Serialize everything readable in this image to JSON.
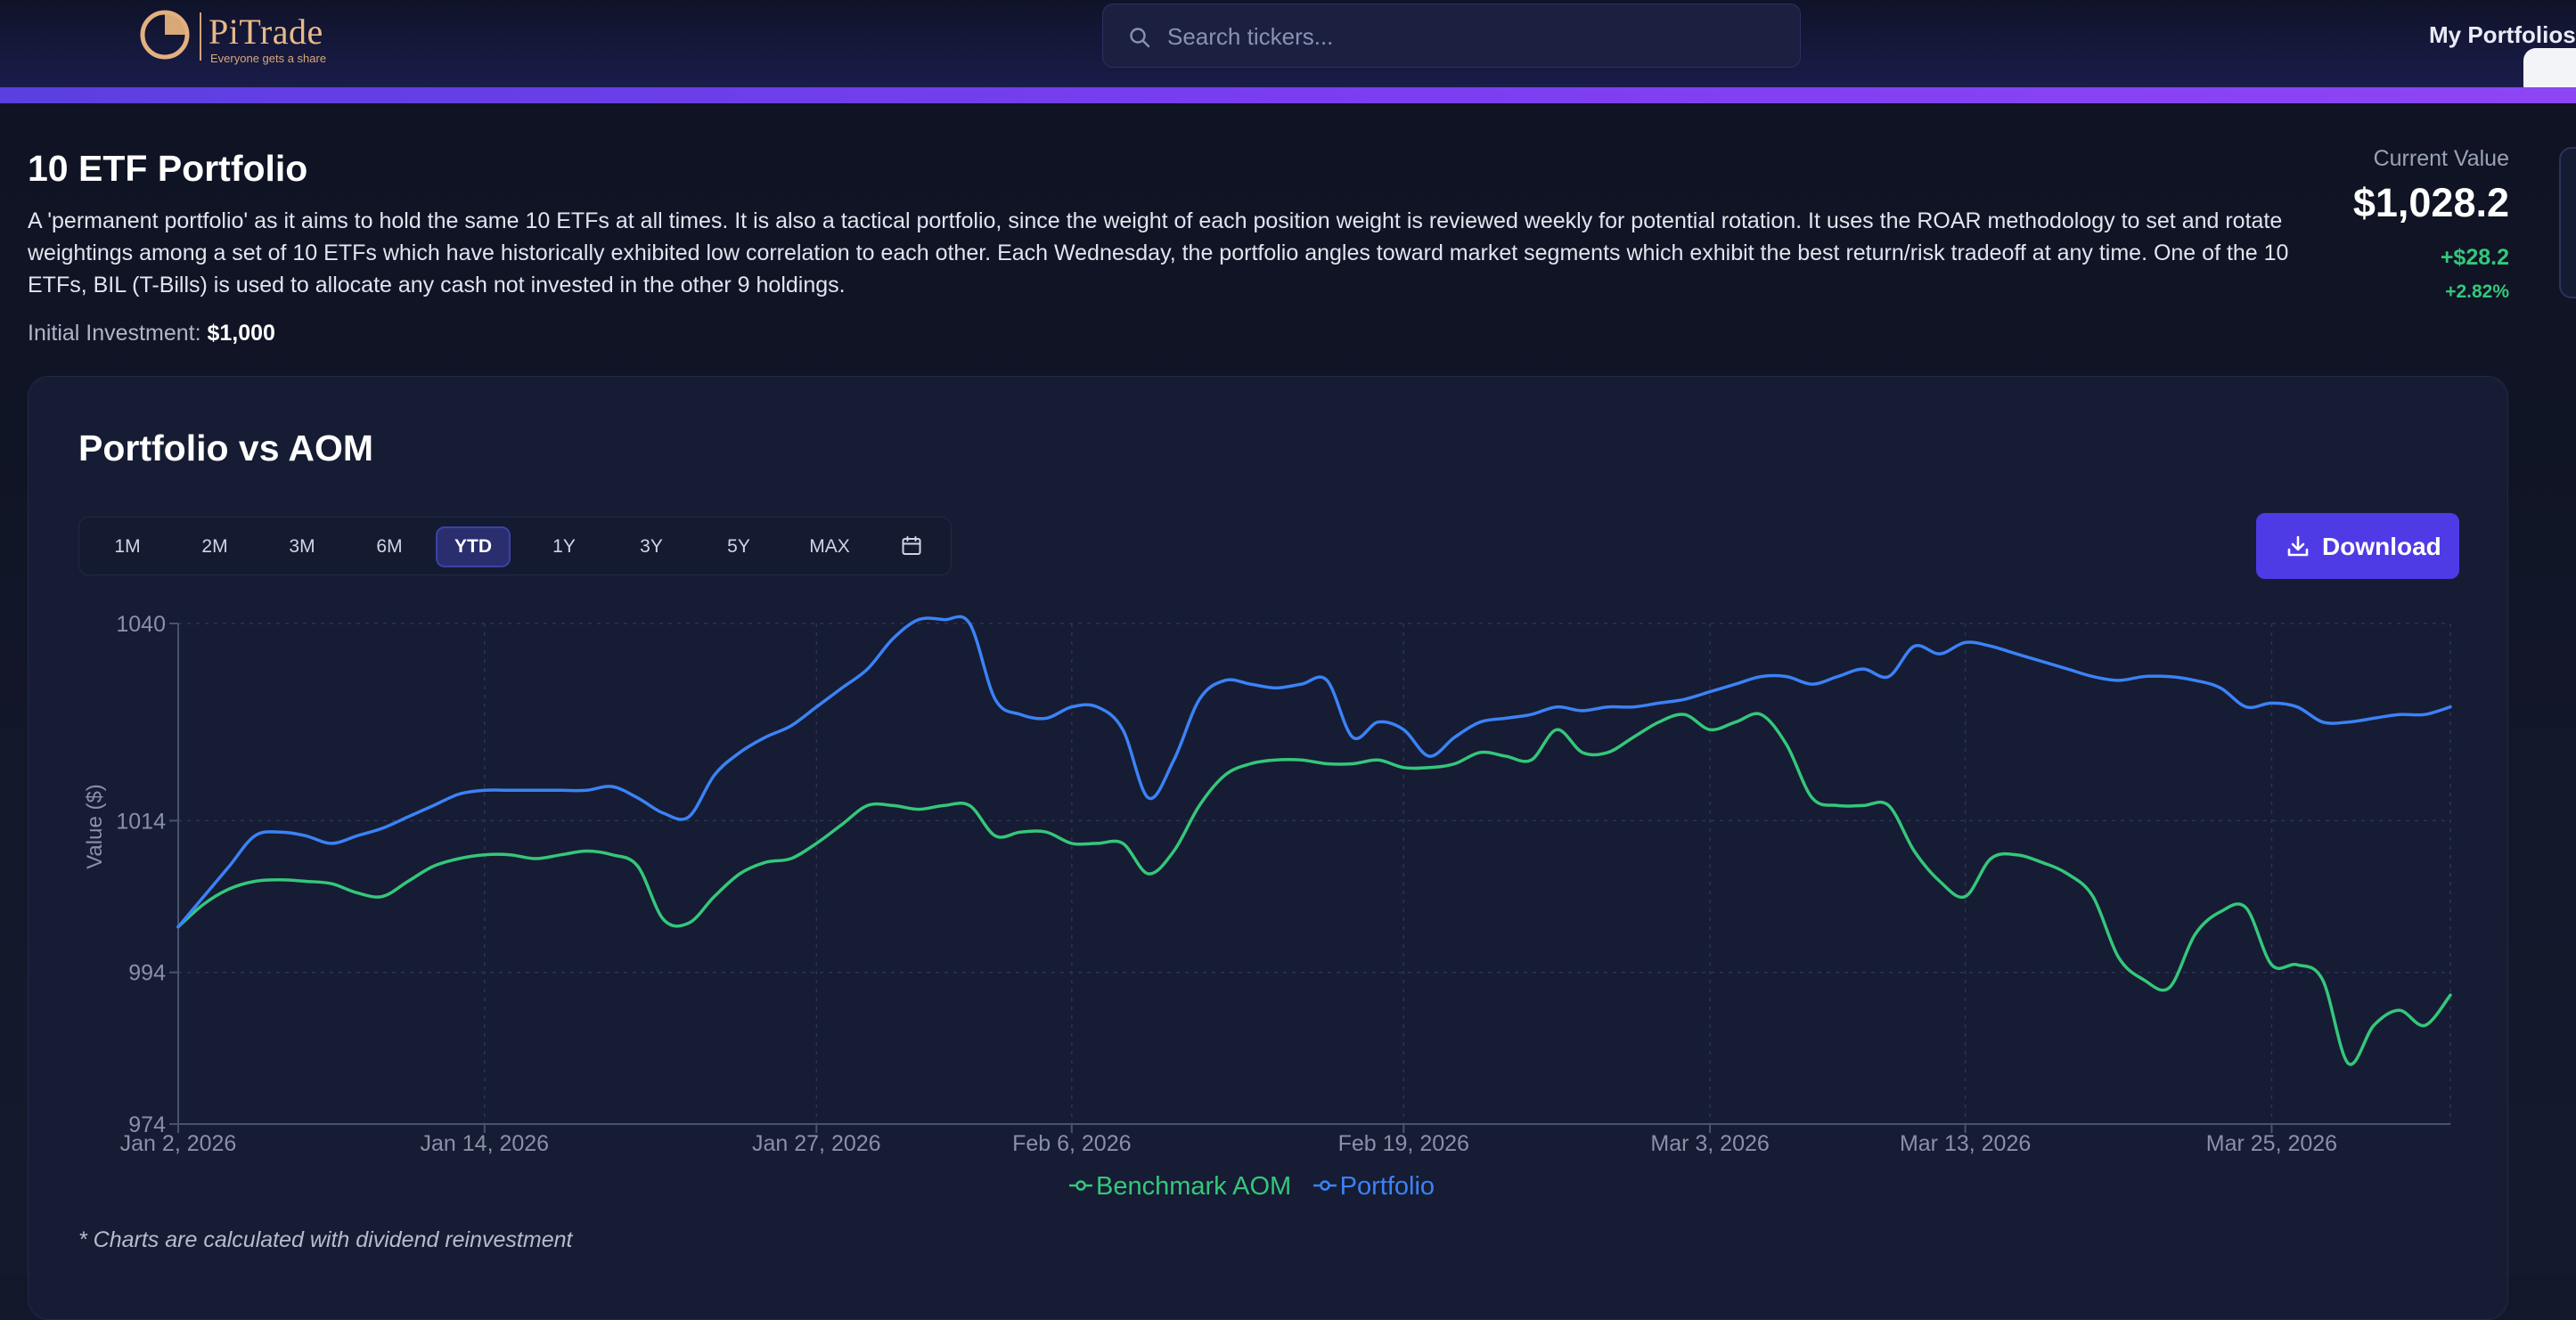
{
  "app": {
    "name": "PiTrade",
    "tagline": "Everyone gets a share",
    "search_placeholder": "Search tickers...",
    "nav_link": "My Portfolios"
  },
  "portfolio": {
    "title": "10 ETF Portfolio",
    "description": "A 'permanent portfolio' as it aims to hold the same 10 ETFs at all times. It is also a tactical portfolio, since the weight of each position weight is reviewed weekly for potential rotation. It uses the ROAR methodology to set and rotate weightings among a set of 10 ETFs which have historically exhibited low correlation to each other. Each Wednesday, the portfolio angles toward market segments which exhibit the best return/risk tradeoff at any time. One of the 10 ETFs, BIL (T-Bills) is used to allocate any cash not invested in the other 9 holdings.",
    "initial_label": "Initial Investment:",
    "initial_value": "$1,000",
    "current_label": "Current Value",
    "current_value": "$1,028.2",
    "change_abs": "+$28.2",
    "change_pct": "+2.82%"
  },
  "chart_card": {
    "title": "Portfolio vs AOM",
    "ranges": [
      "1M",
      "2M",
      "3M",
      "6M",
      "YTD",
      "1Y",
      "3Y",
      "5Y",
      "MAX"
    ],
    "active_range": "YTD",
    "download_label": "Download",
    "footnote": "* Charts are calculated with dividend reinvestment"
  },
  "colors": {
    "accent": "#4f3be6",
    "benchmark": "#34c77b",
    "portfolio": "#3b82f6",
    "positive": "#34c77b"
  },
  "chart_data": {
    "type": "line",
    "ylabel": "Value ($)",
    "xlabel": "",
    "ylim": [
      974,
      1040
    ],
    "yticks": [
      974,
      994,
      1014,
      1040
    ],
    "x_range": [
      "Jan 2, 2026",
      "Apr 1, 2026"
    ],
    "xticks": [
      "Jan 2, 2026",
      "Jan 14, 2026",
      "Jan 27, 2026",
      "Feb 6, 2026",
      "Feb 19, 2026",
      "Mar 3, 2026",
      "Mar 13, 2026",
      "Mar 25, 2026"
    ],
    "grid": true,
    "legend_position": "bottom-center",
    "series": [
      {
        "name": "Benchmark AOM",
        "color": "#34c77b",
        "points": [
          [
            "Jan 2, 2026",
            1000
          ],
          [
            "Jan 3, 2026",
            1003
          ],
          [
            "Jan 4, 2026",
            1005
          ],
          [
            "Jan 5, 2026",
            1006
          ],
          [
            "Jan 6, 2026",
            1006.2
          ],
          [
            "Jan 7, 2026",
            1006
          ],
          [
            "Jan 8, 2026",
            1005.7
          ],
          [
            "Jan 9, 2026",
            1004.5
          ],
          [
            "Jan 10, 2026",
            1004
          ],
          [
            "Jan 11, 2026",
            1006
          ],
          [
            "Jan 12, 2026",
            1008
          ],
          [
            "Jan 13, 2026",
            1009
          ],
          [
            "Jan 14, 2026",
            1009.5
          ],
          [
            "Jan 15, 2026",
            1009.5
          ],
          [
            "Jan 16, 2026",
            1009
          ],
          [
            "Jan 17, 2026",
            1009.5
          ],
          [
            "Jan 18, 2026",
            1010
          ],
          [
            "Jan 19, 2026",
            1009.5
          ],
          [
            "Jan 20, 2026",
            1008
          ],
          [
            "Jan 21, 2026",
            1001
          ],
          [
            "Jan 22, 2026",
            1000.5
          ],
          [
            "Jan 23, 2026",
            1004
          ],
          [
            "Jan 24, 2026",
            1007
          ],
          [
            "Jan 25, 2026",
            1008.5
          ],
          [
            "Jan 26, 2026",
            1009
          ],
          [
            "Jan 27, 2026",
            1011
          ],
          [
            "Jan 28, 2026",
            1013.5
          ],
          [
            "Jan 29, 2026",
            1016
          ],
          [
            "Jan 30, 2026",
            1016
          ],
          [
            "Jan 31, 2026",
            1015.5
          ],
          [
            "Feb 1, 2026",
            1016
          ],
          [
            "Feb 2, 2026",
            1016
          ],
          [
            "Feb 3, 2026",
            1012
          ],
          [
            "Feb 4, 2026",
            1012.5
          ],
          [
            "Feb 5, 2026",
            1012.5
          ],
          [
            "Feb 6, 2026",
            1011
          ],
          [
            "Feb 7, 2026",
            1011
          ],
          [
            "Feb 8, 2026",
            1011
          ],
          [
            "Feb 9, 2026",
            1007
          ],
          [
            "Feb 10, 2026",
            1010
          ],
          [
            "Feb 11, 2026",
            1016
          ],
          [
            "Feb 12, 2026",
            1020
          ],
          [
            "Feb 13, 2026",
            1021.5
          ],
          [
            "Feb 14, 2026",
            1022
          ],
          [
            "Feb 15, 2026",
            1022
          ],
          [
            "Feb 16, 2026",
            1021.5
          ],
          [
            "Feb 17, 2026",
            1021.5
          ],
          [
            "Feb 18, 2026",
            1022
          ],
          [
            "Feb 19, 2026",
            1021
          ],
          [
            "Feb 20, 2026",
            1021
          ],
          [
            "Feb 21, 2026",
            1021.5
          ],
          [
            "Feb 22, 2026",
            1023
          ],
          [
            "Feb 23, 2026",
            1022.5
          ],
          [
            "Feb 24, 2026",
            1022
          ],
          [
            "Feb 25, 2026",
            1026
          ],
          [
            "Feb 26, 2026",
            1023
          ],
          [
            "Feb 27, 2026",
            1023
          ],
          [
            "Feb 28, 2026",
            1025
          ],
          [
            "Mar 1, 2026",
            1027
          ],
          [
            "Mar 2, 2026",
            1028
          ],
          [
            "Mar 3, 2026",
            1026
          ],
          [
            "Mar 4, 2026",
            1027
          ],
          [
            "Mar 5, 2026",
            1028
          ],
          [
            "Mar 6, 2026",
            1024
          ],
          [
            "Mar 7, 2026",
            1017
          ],
          [
            "Mar 8, 2026",
            1016
          ],
          [
            "Mar 9, 2026",
            1016
          ],
          [
            "Mar 10, 2026",
            1016
          ],
          [
            "Mar 11, 2026",
            1010
          ],
          [
            "Mar 12, 2026",
            1006
          ],
          [
            "Mar 13, 2026",
            1004
          ],
          [
            "Mar 14, 2026",
            1009
          ],
          [
            "Mar 15, 2026",
            1009.5
          ],
          [
            "Mar 16, 2026",
            1008.5
          ],
          [
            "Mar 17, 2026",
            1007
          ],
          [
            "Mar 18, 2026",
            1004
          ],
          [
            "Mar 19, 2026",
            996
          ],
          [
            "Mar 20, 2026",
            993
          ],
          [
            "Mar 21, 2026",
            992
          ],
          [
            "Mar 22, 2026",
            999
          ],
          [
            "Mar 23, 2026",
            1002
          ],
          [
            "Mar 24, 2026",
            1002.5
          ],
          [
            "Mar 25, 2026",
            995
          ],
          [
            "Mar 26, 2026",
            995
          ],
          [
            "Mar 27, 2026",
            993
          ],
          [
            "Mar 28, 2026",
            982
          ],
          [
            "Mar 29, 2026",
            987
          ],
          [
            "Mar 30, 2026",
            989
          ],
          [
            "Mar 31, 2026",
            987
          ],
          [
            "Apr 1, 2026",
            991
          ]
        ]
      },
      {
        "name": "Portfolio",
        "color": "#3b82f6",
        "points": [
          [
            "Jan 2, 2026",
            1000
          ],
          [
            "Jan 3, 2026",
            1004
          ],
          [
            "Jan 4, 2026",
            1008
          ],
          [
            "Jan 5, 2026",
            1012
          ],
          [
            "Jan 6, 2026",
            1012.5
          ],
          [
            "Jan 7, 2026",
            1012
          ],
          [
            "Jan 8, 2026",
            1011
          ],
          [
            "Jan 9, 2026",
            1012
          ],
          [
            "Jan 10, 2026",
            1013
          ],
          [
            "Jan 11, 2026",
            1014.5
          ],
          [
            "Jan 12, 2026",
            1016
          ],
          [
            "Jan 13, 2026",
            1017.5
          ],
          [
            "Jan 14, 2026",
            1018
          ],
          [
            "Jan 15, 2026",
            1018
          ],
          [
            "Jan 16, 2026",
            1018
          ],
          [
            "Jan 17, 2026",
            1018
          ],
          [
            "Jan 18, 2026",
            1018
          ],
          [
            "Jan 19, 2026",
            1018.5
          ],
          [
            "Jan 20, 2026",
            1017
          ],
          [
            "Jan 21, 2026",
            1015
          ],
          [
            "Jan 22, 2026",
            1014.5
          ],
          [
            "Jan 23, 2026",
            1020
          ],
          [
            "Jan 24, 2026",
            1023
          ],
          [
            "Jan 25, 2026",
            1025
          ],
          [
            "Jan 26, 2026",
            1026.5
          ],
          [
            "Jan 27, 2026",
            1029
          ],
          [
            "Jan 28, 2026",
            1031.5
          ],
          [
            "Jan 29, 2026",
            1034
          ],
          [
            "Jan 30, 2026",
            1038
          ],
          [
            "Jan 31, 2026",
            1040.5
          ],
          [
            "Feb 1, 2026",
            1040.5
          ],
          [
            "Feb 2, 2026",
            1040
          ],
          [
            "Feb 3, 2026",
            1030
          ],
          [
            "Feb 4, 2026",
            1028
          ],
          [
            "Feb 5, 2026",
            1027.5
          ],
          [
            "Feb 6, 2026",
            1029
          ],
          [
            "Feb 7, 2026",
            1029
          ],
          [
            "Feb 8, 2026",
            1026
          ],
          [
            "Feb 9, 2026",
            1017
          ],
          [
            "Feb 10, 2026",
            1022
          ],
          [
            "Feb 11, 2026",
            1030
          ],
          [
            "Feb 12, 2026",
            1032.5
          ],
          [
            "Feb 13, 2026",
            1032
          ],
          [
            "Feb 14, 2026",
            1031.5
          ],
          [
            "Feb 15, 2026",
            1032
          ],
          [
            "Feb 16, 2026",
            1032.5
          ],
          [
            "Feb 17, 2026",
            1025
          ],
          [
            "Feb 18, 2026",
            1027
          ],
          [
            "Feb 19, 2026",
            1026
          ],
          [
            "Feb 20, 2026",
            1022.5
          ],
          [
            "Feb 21, 2026",
            1025
          ],
          [
            "Feb 22, 2026",
            1027
          ],
          [
            "Feb 23, 2026",
            1027.5
          ],
          [
            "Feb 24, 2026",
            1028
          ],
          [
            "Feb 25, 2026",
            1029
          ],
          [
            "Feb 26, 2026",
            1028.5
          ],
          [
            "Feb 27, 2026",
            1029
          ],
          [
            "Feb 28, 2026",
            1029
          ],
          [
            "Mar 1, 2026",
            1029.5
          ],
          [
            "Mar 2, 2026",
            1030
          ],
          [
            "Mar 3, 2026",
            1031
          ],
          [
            "Mar 4, 2026",
            1032
          ],
          [
            "Mar 5, 2026",
            1033
          ],
          [
            "Mar 6, 2026",
            1033
          ],
          [
            "Mar 7, 2026",
            1032
          ],
          [
            "Mar 8, 2026",
            1033
          ],
          [
            "Mar 9, 2026",
            1034
          ],
          [
            "Mar 10, 2026",
            1033
          ],
          [
            "Mar 11, 2026",
            1037
          ],
          [
            "Mar 12, 2026",
            1036
          ],
          [
            "Mar 13, 2026",
            1037.5
          ],
          [
            "Mar 14, 2026",
            1037
          ],
          [
            "Mar 15, 2026",
            1036
          ],
          [
            "Mar 16, 2026",
            1035
          ],
          [
            "Mar 17, 2026",
            1034
          ],
          [
            "Mar 18, 2026",
            1033
          ],
          [
            "Mar 19, 2026",
            1032.5
          ],
          [
            "Mar 20, 2026",
            1033
          ],
          [
            "Mar 21, 2026",
            1033
          ],
          [
            "Mar 22, 2026",
            1032.5
          ],
          [
            "Mar 23, 2026",
            1031.5
          ],
          [
            "Mar 24, 2026",
            1029
          ],
          [
            "Mar 25, 2026",
            1029.5
          ],
          [
            "Mar 26, 2026",
            1029
          ],
          [
            "Mar 27, 2026",
            1027
          ],
          [
            "Mar 28, 2026",
            1027
          ],
          [
            "Mar 29, 2026",
            1027.5
          ],
          [
            "Mar 30, 2026",
            1028
          ],
          [
            "Mar 31, 2026",
            1028
          ],
          [
            "Apr 1, 2026",
            1029
          ]
        ]
      }
    ]
  }
}
